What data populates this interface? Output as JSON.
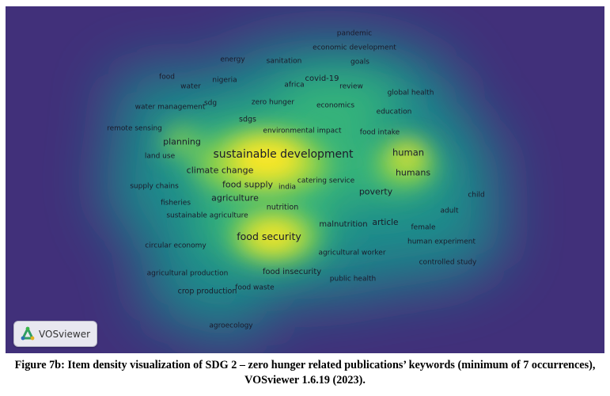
{
  "caption": "Figure 7b: Item density visualization of SDG 2 – zero hunger related publications’ keywords (minimum of 7 occurrences), VOSviewer 1.6.19 (2023).",
  "badge": {
    "label": "VOSviewer",
    "icon": "vosviewer-logo-icon"
  },
  "colors": {
    "background": "#41307a",
    "low": "#1f9c8b",
    "mid": "#52c568",
    "high": "#fde725"
  },
  "keywords": [
    {
      "id": "pandemic",
      "label": "pandemic"
    },
    {
      "id": "economic-development",
      "label": "economic development"
    },
    {
      "id": "energy",
      "label": "energy"
    },
    {
      "id": "sanitation",
      "label": "sanitation"
    },
    {
      "id": "goals",
      "label": "goals"
    },
    {
      "id": "food",
      "label": "food"
    },
    {
      "id": "nigeria",
      "label": "nigeria"
    },
    {
      "id": "covid-19",
      "label": "covid-19"
    },
    {
      "id": "water",
      "label": "water"
    },
    {
      "id": "africa",
      "label": "africa"
    },
    {
      "id": "review",
      "label": "review"
    },
    {
      "id": "global-health",
      "label": "global health"
    },
    {
      "id": "water-management",
      "label": "water management"
    },
    {
      "id": "sdg",
      "label": "sdg"
    },
    {
      "id": "zero-hunger",
      "label": "zero hunger"
    },
    {
      "id": "economics",
      "label": "economics"
    },
    {
      "id": "education",
      "label": "education"
    },
    {
      "id": "sdgs",
      "label": "sdgs"
    },
    {
      "id": "remote-sensing",
      "label": "remote sensing"
    },
    {
      "id": "environmental-impact",
      "label": "environmental impact"
    },
    {
      "id": "food-intake",
      "label": "food intake"
    },
    {
      "id": "planning",
      "label": "planning"
    },
    {
      "id": "sustainable-development",
      "label": "sustainable development"
    },
    {
      "id": "human",
      "label": "human"
    },
    {
      "id": "land-use",
      "label": "land use"
    },
    {
      "id": "climate-change",
      "label": "climate change"
    },
    {
      "id": "humans",
      "label": "humans"
    },
    {
      "id": "catering-service",
      "label": "catering service"
    },
    {
      "id": "food-supply",
      "label": "food supply"
    },
    {
      "id": "supply-chains",
      "label": "supply chains"
    },
    {
      "id": "india",
      "label": "india"
    },
    {
      "id": "poverty",
      "label": "poverty"
    },
    {
      "id": "child",
      "label": "child"
    },
    {
      "id": "agriculture",
      "label": "agriculture"
    },
    {
      "id": "fisheries",
      "label": "fisheries"
    },
    {
      "id": "nutrition",
      "label": "nutrition"
    },
    {
      "id": "adult",
      "label": "adult"
    },
    {
      "id": "sustainable-agriculture",
      "label": "sustainable agriculture"
    },
    {
      "id": "article",
      "label": "article"
    },
    {
      "id": "malnutrition",
      "label": "malnutrition"
    },
    {
      "id": "female",
      "label": "female"
    },
    {
      "id": "food-security",
      "label": "food security"
    },
    {
      "id": "circular-economy",
      "label": "circular economy"
    },
    {
      "id": "human-experiment",
      "label": "human experiment"
    },
    {
      "id": "agricultural-worker",
      "label": "agricultural worker"
    },
    {
      "id": "controlled-study",
      "label": "controlled study"
    },
    {
      "id": "agricultural-production",
      "label": "agricultural production"
    },
    {
      "id": "food-insecurity",
      "label": "food insecurity"
    },
    {
      "id": "public-health",
      "label": "public health"
    },
    {
      "id": "food-waste",
      "label": "food waste"
    },
    {
      "id": "crop-production",
      "label": "crop production"
    },
    {
      "id": "agroecology",
      "label": "agroecology"
    }
  ]
}
